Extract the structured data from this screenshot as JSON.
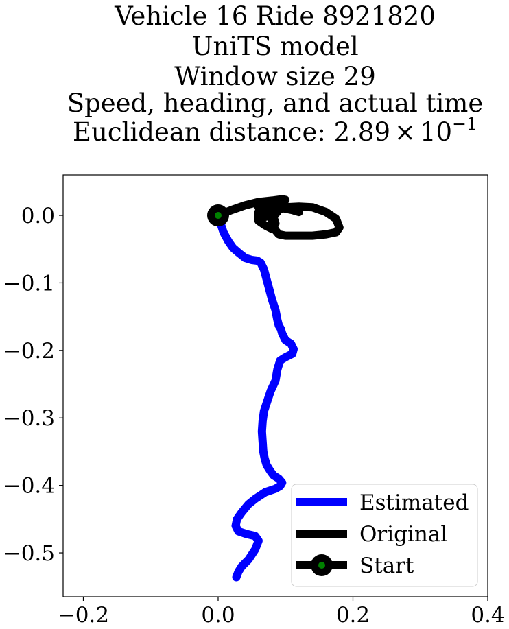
{
  "chart_data": {
    "type": "line",
    "title_lines": [
      "Vehicle 16 Ride 8921820",
      "UniTS model",
      "Window size 29",
      "Speed, heading, and actual time"
    ],
    "title_distance_prefix": "Euclidean distance: 2.89",
    "title_distance_times": "×",
    "title_distance_base": "10",
    "title_distance_exponent": "−1",
    "xlim": [
      -0.23,
      0.4
    ],
    "ylim": [
      -0.565,
      0.06
    ],
    "xticks": [
      -0.2,
      0.0,
      0.2,
      0.4
    ],
    "xtick_labels": [
      "−0.2",
      "0.0",
      "0.2",
      "0.4"
    ],
    "yticks": [
      0.0,
      -0.1,
      -0.2,
      -0.3,
      -0.4,
      -0.5
    ],
    "ytick_labels": [
      "0.0",
      "−0.1",
      "−0.2",
      "−0.3",
      "−0.4",
      "−0.5"
    ],
    "legend_position": "lower right",
    "legend": [
      {
        "label": "Estimated",
        "color": "#0000ff"
      },
      {
        "label": "Original",
        "color": "#000000"
      },
      {
        "label": "Start",
        "color": "#000000",
        "marker_color": "#008000"
      }
    ],
    "series": [
      {
        "name": "Estimated",
        "color": "#0000ff",
        "x": [
          0.0,
          0.003,
          0.008,
          0.015,
          0.022,
          0.03,
          0.04,
          0.05,
          0.058,
          0.063,
          0.068,
          0.072,
          0.076,
          0.08,
          0.085,
          0.088,
          0.09,
          0.093,
          0.095,
          0.1,
          0.108,
          0.112,
          0.11,
          0.1,
          0.092,
          0.088,
          0.085,
          0.078,
          0.073,
          0.068,
          0.066,
          0.065,
          0.066,
          0.067,
          0.069,
          0.072,
          0.077,
          0.082,
          0.09,
          0.095,
          0.092,
          0.085,
          0.07,
          0.055,
          0.045,
          0.035,
          0.028,
          0.026,
          0.03,
          0.042,
          0.055,
          0.06,
          0.055,
          0.045,
          0.035,
          0.03,
          0.027
        ],
        "y": [
          0.0,
          -0.01,
          -0.025,
          -0.038,
          -0.048,
          -0.055,
          -0.063,
          -0.066,
          -0.067,
          -0.07,
          -0.08,
          -0.095,
          -0.11,
          -0.125,
          -0.14,
          -0.155,
          -0.163,
          -0.168,
          -0.175,
          -0.185,
          -0.19,
          -0.198,
          -0.205,
          -0.21,
          -0.215,
          -0.228,
          -0.245,
          -0.26,
          -0.275,
          -0.29,
          -0.305,
          -0.32,
          -0.335,
          -0.35,
          -0.36,
          -0.37,
          -0.378,
          -0.385,
          -0.39,
          -0.396,
          -0.401,
          -0.405,
          -0.41,
          -0.42,
          -0.428,
          -0.44,
          -0.45,
          -0.46,
          -0.468,
          -0.472,
          -0.475,
          -0.482,
          -0.495,
          -0.51,
          -0.52,
          -0.528,
          -0.536
        ]
      },
      {
        "name": "Original",
        "color": "#000000",
        "x": [
          0.0,
          0.02,
          0.04,
          0.06,
          0.08,
          0.095,
          0.1,
          0.09,
          0.075,
          0.065,
          0.06,
          0.065,
          0.075,
          0.085,
          0.09,
          0.088,
          0.08,
          0.07,
          0.06,
          0.06,
          0.07,
          0.08,
          0.085,
          0.082,
          0.09,
          0.1,
          0.12,
          0.14,
          0.16,
          0.175,
          0.18,
          0.175,
          0.16,
          0.14,
          0.12,
          0.1,
          0.09,
          0.085,
          0.08,
          0.08,
          0.085,
          0.09,
          0.1,
          0.11,
          0.12
        ],
        "y": [
          0.0,
          0.008,
          0.015,
          0.02,
          0.022,
          0.024,
          0.023,
          0.02,
          0.017,
          0.015,
          0.012,
          0.008,
          0.01,
          0.014,
          0.012,
          0.005,
          0.0,
          -0.002,
          0.005,
          -0.008,
          -0.015,
          -0.02,
          -0.012,
          -0.002,
          0.008,
          0.012,
          0.013,
          0.012,
          0.005,
          -0.005,
          -0.018,
          -0.025,
          -0.028,
          -0.03,
          -0.03,
          -0.03,
          -0.028,
          -0.022,
          -0.012,
          0.0,
          0.01,
          0.012,
          0.01,
          0.008,
          0.005
        ]
      }
    ],
    "start_point": {
      "x": 0.0,
      "y": 0.0
    }
  }
}
